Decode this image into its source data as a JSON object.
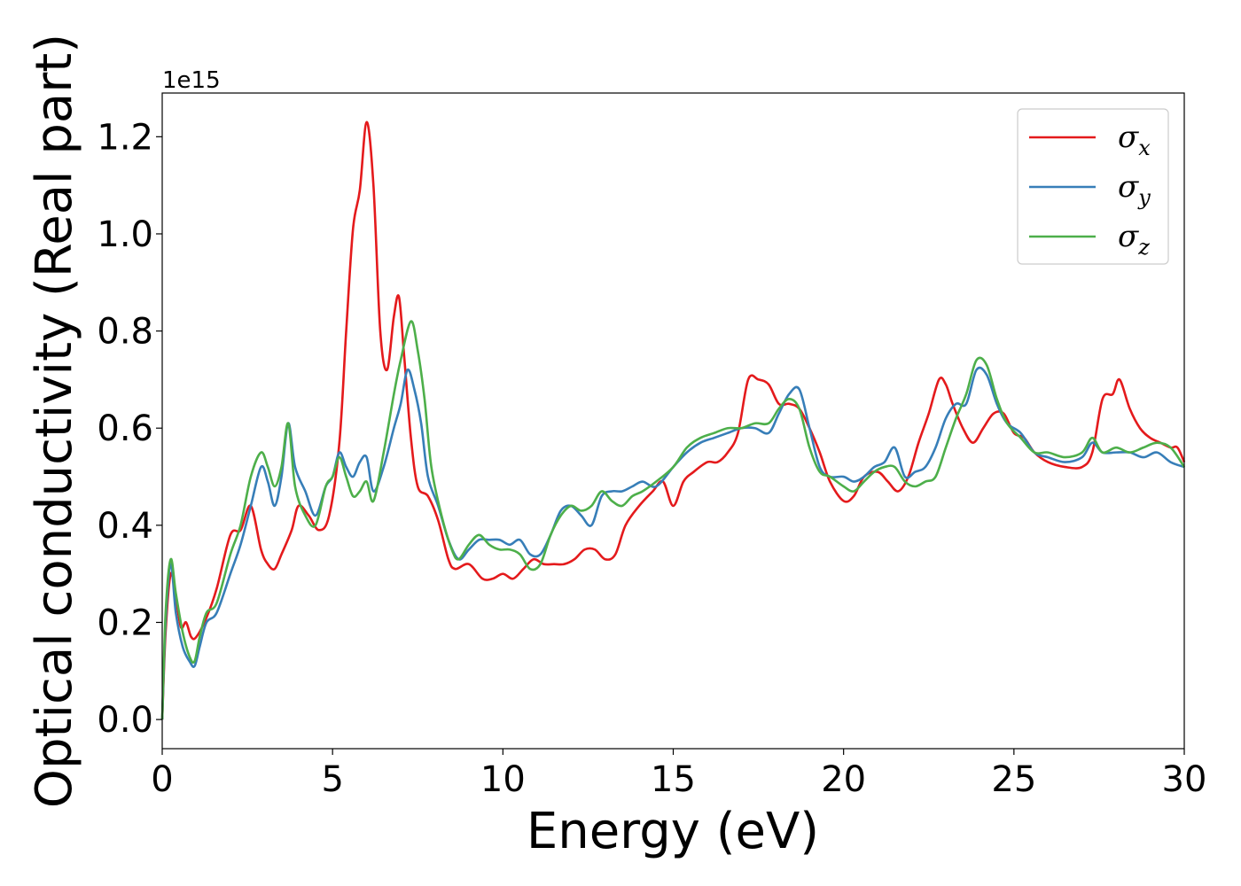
{
  "chart_data": {
    "type": "line",
    "title": "",
    "xlabel": "Energy (eV)",
    "ylabel": "Optical conductivity (Real part)",
    "y_offset_label": "1e15",
    "xlim": [
      0,
      30
    ],
    "ylim": [
      -0.06,
      1.29
    ],
    "x_ticks": [
      0,
      5,
      10,
      15,
      20,
      25,
      30
    ],
    "x_tick_labels": [
      "0",
      "5",
      "10",
      "15",
      "20",
      "25",
      "30"
    ],
    "y_ticks": [
      0.0,
      0.2,
      0.4,
      0.6,
      0.8,
      1.0,
      1.2
    ],
    "y_tick_labels": [
      "0.0",
      "0.2",
      "0.4",
      "0.6",
      "0.8",
      "1.0",
      "1.2"
    ],
    "grid": false,
    "legend_position": "top-right",
    "series": [
      {
        "name": "σx",
        "legend_base": "σ",
        "legend_sub": "x",
        "color": "#e41a1c",
        "x": [
          0,
          0.1,
          0.25,
          0.4,
          0.55,
          0.7,
          0.85,
          1.0,
          1.3,
          1.6,
          2.0,
          2.3,
          2.6,
          2.9,
          3.1,
          3.3,
          3.5,
          3.8,
          4.0,
          4.3,
          4.6,
          4.9,
          5.2,
          5.4,
          5.6,
          5.8,
          6.0,
          6.2,
          6.4,
          6.6,
          6.8,
          6.95,
          7.1,
          7.3,
          7.5,
          7.8,
          8.1,
          8.4,
          8.6,
          9.0,
          9.4,
          9.7,
          10.0,
          10.3,
          10.6,
          10.9,
          11.2,
          11.5,
          11.8,
          12.1,
          12.4,
          12.7,
          13.0,
          13.3,
          13.6,
          14.0,
          14.4,
          14.7,
          15.0,
          15.3,
          15.6,
          16.0,
          16.3,
          16.6,
          16.9,
          17.2,
          17.5,
          17.8,
          18.1,
          18.4,
          18.7,
          19.0,
          19.3,
          19.6,
          20.0,
          20.3,
          20.6,
          21.0,
          21.3,
          21.6,
          21.9,
          22.2,
          22.5,
          22.8,
          23.0,
          23.2,
          23.5,
          23.8,
          24.1,
          24.4,
          24.7,
          25.0,
          25.3,
          25.6,
          26.0,
          26.5,
          27.0,
          27.3,
          27.6,
          27.9,
          28.1,
          28.4,
          28.7,
          29.0,
          29.3,
          29.6,
          29.8,
          30.0
        ],
        "values": [
          0.0,
          0.18,
          0.3,
          0.25,
          0.19,
          0.2,
          0.17,
          0.17,
          0.21,
          0.27,
          0.38,
          0.39,
          0.44,
          0.35,
          0.32,
          0.31,
          0.34,
          0.39,
          0.44,
          0.42,
          0.39,
          0.42,
          0.57,
          0.8,
          1.01,
          1.09,
          1.23,
          1.1,
          0.8,
          0.72,
          0.83,
          0.87,
          0.75,
          0.58,
          0.48,
          0.46,
          0.41,
          0.33,
          0.31,
          0.32,
          0.29,
          0.29,
          0.3,
          0.29,
          0.31,
          0.33,
          0.32,
          0.32,
          0.32,
          0.33,
          0.35,
          0.35,
          0.33,
          0.34,
          0.4,
          0.44,
          0.47,
          0.49,
          0.44,
          0.49,
          0.51,
          0.53,
          0.53,
          0.55,
          0.59,
          0.7,
          0.7,
          0.69,
          0.65,
          0.65,
          0.64,
          0.6,
          0.55,
          0.49,
          0.45,
          0.46,
          0.5,
          0.51,
          0.49,
          0.47,
          0.5,
          0.57,
          0.63,
          0.7,
          0.69,
          0.65,
          0.6,
          0.57,
          0.6,
          0.63,
          0.63,
          0.59,
          0.58,
          0.55,
          0.53,
          0.52,
          0.52,
          0.55,
          0.66,
          0.67,
          0.7,
          0.64,
          0.6,
          0.58,
          0.57,
          0.56,
          0.56,
          0.53
        ]
      },
      {
        "name": "σy",
        "legend_base": "σ",
        "legend_sub": "y",
        "color": "#377eb8",
        "x": [
          0,
          0.1,
          0.25,
          0.4,
          0.6,
          0.8,
          0.95,
          1.1,
          1.3,
          1.6,
          2.0,
          2.3,
          2.6,
          2.9,
          3.1,
          3.3,
          3.5,
          3.7,
          3.9,
          4.2,
          4.5,
          4.8,
          5.0,
          5.2,
          5.4,
          5.6,
          5.8,
          6.0,
          6.2,
          6.5,
          6.8,
          7.0,
          7.2,
          7.4,
          7.6,
          7.8,
          8.1,
          8.4,
          8.7,
          9.0,
          9.3,
          9.6,
          9.9,
          10.2,
          10.5,
          10.8,
          11.1,
          11.4,
          11.7,
          12.0,
          12.3,
          12.6,
          12.9,
          13.2,
          13.5,
          13.8,
          14.1,
          14.5,
          15.0,
          15.4,
          15.8,
          16.2,
          16.6,
          17.0,
          17.4,
          17.8,
          18.1,
          18.4,
          18.7,
          19.0,
          19.3,
          19.6,
          20.0,
          20.3,
          20.6,
          20.9,
          21.2,
          21.5,
          21.8,
          22.1,
          22.4,
          22.7,
          23.0,
          23.3,
          23.6,
          23.9,
          24.2,
          24.5,
          24.8,
          25.2,
          25.6,
          26.0,
          26.5,
          27.0,
          27.3,
          27.6,
          28.0,
          28.4,
          28.8,
          29.2,
          29.6,
          30.0
        ],
        "values": [
          0.0,
          0.2,
          0.32,
          0.22,
          0.15,
          0.12,
          0.11,
          0.15,
          0.2,
          0.22,
          0.3,
          0.36,
          0.44,
          0.52,
          0.49,
          0.44,
          0.5,
          0.61,
          0.52,
          0.47,
          0.42,
          0.48,
          0.5,
          0.55,
          0.52,
          0.5,
          0.53,
          0.54,
          0.47,
          0.52,
          0.6,
          0.65,
          0.72,
          0.68,
          0.61,
          0.5,
          0.44,
          0.37,
          0.33,
          0.35,
          0.37,
          0.37,
          0.37,
          0.36,
          0.37,
          0.34,
          0.34,
          0.38,
          0.43,
          0.44,
          0.42,
          0.4,
          0.46,
          0.47,
          0.47,
          0.48,
          0.49,
          0.48,
          0.52,
          0.55,
          0.57,
          0.58,
          0.59,
          0.6,
          0.6,
          0.59,
          0.63,
          0.67,
          0.68,
          0.6,
          0.52,
          0.5,
          0.5,
          0.49,
          0.5,
          0.52,
          0.53,
          0.56,
          0.5,
          0.51,
          0.52,
          0.56,
          0.62,
          0.65,
          0.65,
          0.72,
          0.71,
          0.65,
          0.61,
          0.59,
          0.55,
          0.54,
          0.53,
          0.54,
          0.57,
          0.55,
          0.55,
          0.55,
          0.54,
          0.55,
          0.53,
          0.52
        ]
      },
      {
        "name": "σz",
        "legend_base": "σ",
        "legend_sub": "z",
        "color": "#4daf4a",
        "x": [
          0,
          0.1,
          0.25,
          0.4,
          0.6,
          0.8,
          0.95,
          1.1,
          1.3,
          1.6,
          2.0,
          2.3,
          2.6,
          2.9,
          3.1,
          3.3,
          3.5,
          3.7,
          3.9,
          4.2,
          4.5,
          4.8,
          5.0,
          5.2,
          5.4,
          5.6,
          5.8,
          6.0,
          6.2,
          6.5,
          6.8,
          7.0,
          7.3,
          7.5,
          7.7,
          7.9,
          8.2,
          8.5,
          8.7,
          9.0,
          9.3,
          9.6,
          9.9,
          10.2,
          10.5,
          10.8,
          11.1,
          11.4,
          11.7,
          12.0,
          12.3,
          12.6,
          12.9,
          13.2,
          13.5,
          13.8,
          14.1,
          14.5,
          15.0,
          15.4,
          15.8,
          16.2,
          16.6,
          17.0,
          17.4,
          17.8,
          18.1,
          18.4,
          18.7,
          19.0,
          19.3,
          19.6,
          20.0,
          20.3,
          20.6,
          20.9,
          21.2,
          21.5,
          21.8,
          22.1,
          22.4,
          22.7,
          23.0,
          23.3,
          23.6,
          23.9,
          24.2,
          24.5,
          24.8,
          25.2,
          25.6,
          26.0,
          26.5,
          27.0,
          27.3,
          27.6,
          28.0,
          28.4,
          28.8,
          29.2,
          29.6,
          30.0
        ],
        "values": [
          0.0,
          0.22,
          0.33,
          0.26,
          0.18,
          0.13,
          0.12,
          0.17,
          0.22,
          0.24,
          0.34,
          0.4,
          0.5,
          0.55,
          0.52,
          0.48,
          0.52,
          0.61,
          0.48,
          0.42,
          0.4,
          0.48,
          0.5,
          0.54,
          0.5,
          0.46,
          0.47,
          0.49,
          0.45,
          0.55,
          0.67,
          0.74,
          0.82,
          0.76,
          0.66,
          0.52,
          0.42,
          0.35,
          0.33,
          0.36,
          0.38,
          0.36,
          0.35,
          0.35,
          0.34,
          0.31,
          0.32,
          0.38,
          0.42,
          0.44,
          0.43,
          0.44,
          0.47,
          0.45,
          0.44,
          0.46,
          0.47,
          0.49,
          0.52,
          0.56,
          0.58,
          0.59,
          0.6,
          0.6,
          0.61,
          0.61,
          0.64,
          0.66,
          0.64,
          0.56,
          0.51,
          0.5,
          0.48,
          0.47,
          0.49,
          0.51,
          0.52,
          0.52,
          0.49,
          0.48,
          0.49,
          0.5,
          0.56,
          0.62,
          0.67,
          0.74,
          0.73,
          0.66,
          0.61,
          0.58,
          0.55,
          0.55,
          0.54,
          0.55,
          0.58,
          0.55,
          0.56,
          0.55,
          0.56,
          0.57,
          0.56,
          0.52
        ]
      }
    ]
  }
}
